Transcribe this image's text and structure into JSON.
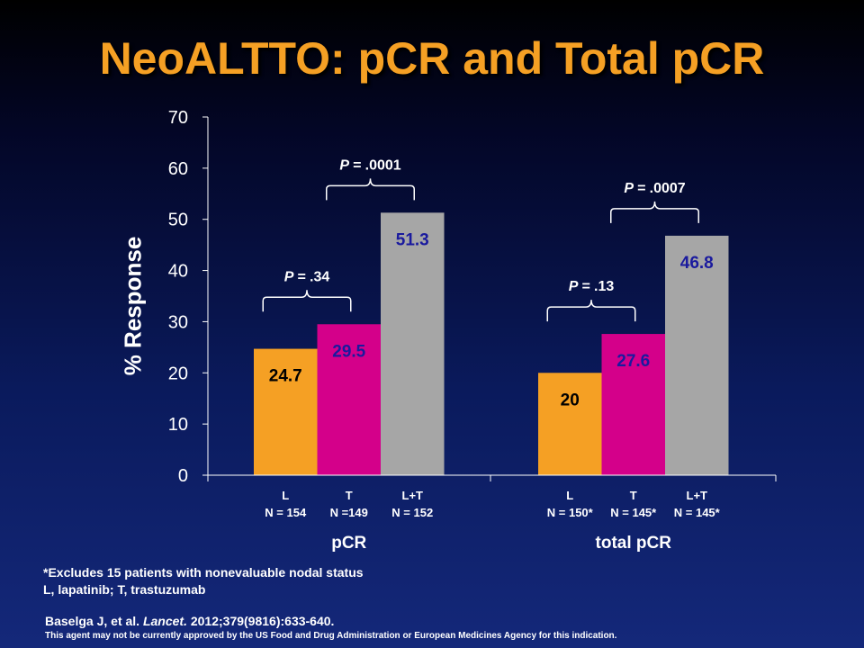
{
  "slide": {
    "title": "NeoALTTO: pCR and Total pCR",
    "footnote_1": "*Excludes 15 patients with nonevaluable nodal status",
    "footnote_2": "L, lapatinib; T, trastuzumab",
    "citation_authors": "Baselga J, et al. ",
    "citation_journal": "Lancet.",
    "citation_details": " 2012;379(9816):633-640.",
    "disclaimer": "This agent may not be currently approved by the US Food and Drug Administration or European Medicines Agency for this indication."
  },
  "chart_data": {
    "type": "bar",
    "ylabel": "% Response",
    "ylim": [
      0,
      70
    ],
    "yticks": [
      0,
      10,
      20,
      30,
      40,
      50,
      60,
      70
    ],
    "grid": false,
    "colors": {
      "L": "#f5a024",
      "T": "#d4008a",
      "L+T": "#a6a6a6"
    },
    "groups": [
      {
        "name": "pCR",
        "bars": [
          {
            "label": "L",
            "n": "N = 154",
            "value": 24.7,
            "value_label": "24.7"
          },
          {
            "label": "T",
            "n": "N =149",
            "value": 29.5,
            "value_label": "29.5"
          },
          {
            "label": "L+T",
            "n": "N = 152",
            "value": 51.3,
            "value_label": "51.3"
          }
        ]
      },
      {
        "name": "total pCR",
        "bars": [
          {
            "label": "L",
            "n": "N = 150*",
            "value": 20,
            "value_label": "20"
          },
          {
            "label": "T",
            "n": "N = 145*",
            "value": 27.6,
            "value_label": "27.6"
          },
          {
            "label": "L+T",
            "n": "N = 145*",
            "value": 46.8,
            "value_label": "46.8"
          }
        ]
      }
    ],
    "annotations": [
      {
        "prefix": "P = ",
        "value": ".34",
        "group": 0,
        "from": 0,
        "to": 1
      },
      {
        "prefix": "P = ",
        "value": ".0001",
        "group": 0,
        "from": 1,
        "to": 2
      },
      {
        "prefix": "P = ",
        "value": ".13",
        "group": 1,
        "from": 0,
        "to": 1
      },
      {
        "prefix": "P = ",
        "value": ".0007",
        "group": 1,
        "from": 1,
        "to": 2
      }
    ]
  }
}
